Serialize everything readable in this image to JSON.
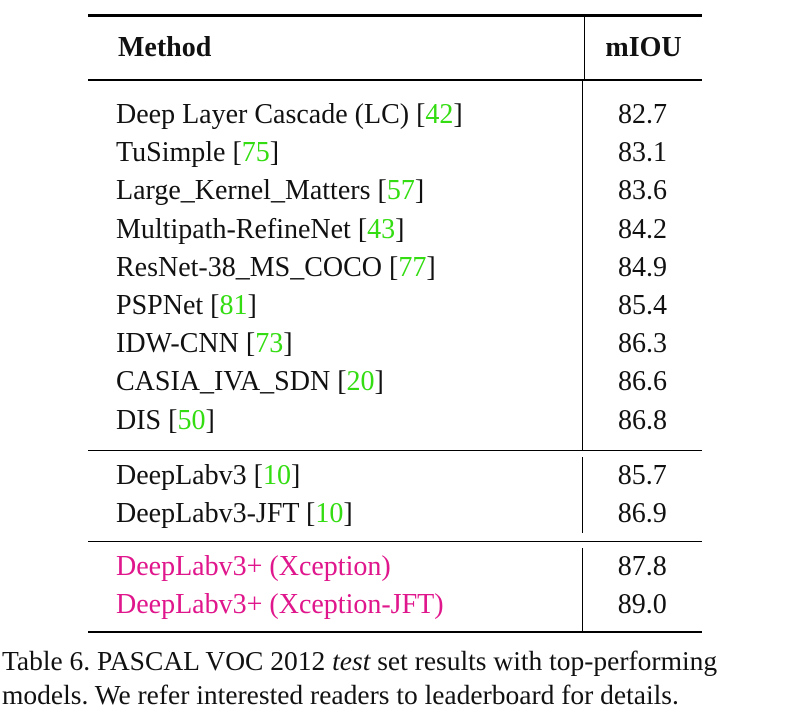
{
  "table": {
    "header": {
      "method": "Method",
      "miou": "mIOU"
    },
    "groups": [
      {
        "rows": [
          {
            "method": "Deep Layer Cascade (LC) ",
            "ref": "42",
            "miou": "82.7"
          },
          {
            "method": "TuSimple ",
            "ref": "75",
            "miou": "83.1"
          },
          {
            "method": "Large_Kernel_Matters ",
            "ref": "57",
            "miou": "83.6"
          },
          {
            "method": "Multipath-RefineNet ",
            "ref": "43",
            "miou": "84.2"
          },
          {
            "method": "ResNet-38_MS_COCO ",
            "ref": "77",
            "miou": "84.9"
          },
          {
            "method": "PSPNet ",
            "ref": "81",
            "miou": "85.4"
          },
          {
            "method": "IDW-CNN ",
            "ref": "73",
            "miou": "86.3"
          },
          {
            "method": "CASIA_IVA_SDN ",
            "ref": "20",
            "miou": "86.6"
          },
          {
            "method": "DIS ",
            "ref": "50",
            "miou": "86.8"
          }
        ]
      },
      {
        "rows": [
          {
            "method": "DeepLabv3 ",
            "ref": "10",
            "miou": "85.7"
          },
          {
            "method": "DeepLabv3-JFT ",
            "ref": "10",
            "miou": "86.9"
          }
        ]
      },
      {
        "rows": [
          {
            "method": "DeepLabv3+ (Xception)",
            "miou": "87.8"
          },
          {
            "method": "DeepLabv3+ (Xception-JFT)",
            "miou": "89.0"
          }
        ]
      }
    ]
  },
  "caption": {
    "prefix": "Table 6. PASCAL VOC 2012 ",
    "emphasis": "test",
    "suffix": " set results with top-performing",
    "line2": "models. We refer interested readers to leaderboard for details."
  },
  "colors": {
    "reference": "#33dd11",
    "ours": "#e0168c"
  }
}
